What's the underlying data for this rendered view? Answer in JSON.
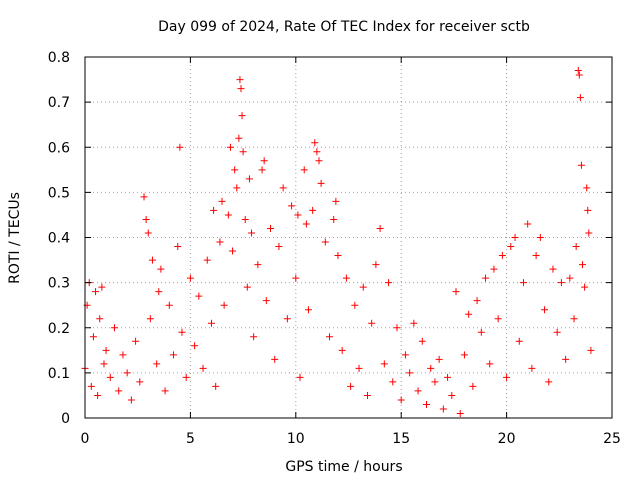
{
  "chart_data": {
    "type": "scatter",
    "title": "Day 099 of 2024, Rate Of TEC Index for receiver sctb",
    "xlabel": "GPS time / hours",
    "ylabel": "ROTI / TECUs",
    "xlim": [
      0,
      25
    ],
    "ylim": [
      0,
      0.8
    ],
    "x_ticks": [
      0,
      5,
      10,
      15,
      20,
      25
    ],
    "x_tick_labels": [
      "0",
      "5",
      "10",
      "15",
      "20",
      "25"
    ],
    "y_ticks": [
      0,
      0.1,
      0.2,
      0.3,
      0.4,
      0.5,
      0.6,
      0.7,
      0.8
    ],
    "y_tick_labels": [
      "0",
      "0.1",
      "0.2",
      "0.3",
      "0.4",
      "0.5",
      "0.6",
      "0.7",
      "0.8"
    ],
    "grid": true,
    "marker": "+",
    "color": "#ff0000",
    "series": [
      {
        "name": "ROTI",
        "points": [
          [
            0.0,
            0.11
          ],
          [
            0.1,
            0.25
          ],
          [
            0.2,
            0.3
          ],
          [
            0.3,
            0.07
          ],
          [
            0.4,
            0.18
          ],
          [
            0.5,
            0.28
          ],
          [
            0.6,
            0.05
          ],
          [
            0.7,
            0.22
          ],
          [
            0.8,
            0.29
          ],
          [
            0.9,
            0.12
          ],
          [
            1.0,
            0.15
          ],
          [
            1.2,
            0.09
          ],
          [
            1.4,
            0.2
          ],
          [
            1.6,
            0.06
          ],
          [
            1.8,
            0.14
          ],
          [
            2.0,
            0.1
          ],
          [
            2.2,
            0.04
          ],
          [
            2.4,
            0.17
          ],
          [
            2.6,
            0.08
          ],
          [
            2.8,
            0.49
          ],
          [
            2.9,
            0.44
          ],
          [
            3.0,
            0.41
          ],
          [
            3.1,
            0.22
          ],
          [
            3.2,
            0.35
          ],
          [
            3.4,
            0.12
          ],
          [
            3.5,
            0.28
          ],
          [
            3.6,
            0.33
          ],
          [
            3.8,
            0.06
          ],
          [
            4.0,
            0.25
          ],
          [
            4.2,
            0.14
          ],
          [
            4.4,
            0.38
          ],
          [
            4.5,
            0.6
          ],
          [
            4.6,
            0.19
          ],
          [
            4.8,
            0.09
          ],
          [
            5.0,
            0.31
          ],
          [
            5.2,
            0.16
          ],
          [
            5.4,
            0.27
          ],
          [
            5.6,
            0.11
          ],
          [
            5.8,
            0.35
          ],
          [
            6.0,
            0.21
          ],
          [
            6.1,
            0.46
          ],
          [
            6.2,
            0.07
          ],
          [
            6.4,
            0.39
          ],
          [
            6.5,
            0.48
          ],
          [
            6.6,
            0.25
          ],
          [
            6.8,
            0.45
          ],
          [
            6.9,
            0.6
          ],
          [
            7.0,
            0.37
          ],
          [
            7.1,
            0.55
          ],
          [
            7.2,
            0.51
          ],
          [
            7.3,
            0.62
          ],
          [
            7.35,
            0.75
          ],
          [
            7.4,
            0.73
          ],
          [
            7.45,
            0.67
          ],
          [
            7.5,
            0.59
          ],
          [
            7.6,
            0.44
          ],
          [
            7.7,
            0.29
          ],
          [
            7.8,
            0.53
          ],
          [
            7.9,
            0.41
          ],
          [
            8.0,
            0.18
          ],
          [
            8.2,
            0.34
          ],
          [
            8.4,
            0.55
          ],
          [
            8.5,
            0.57
          ],
          [
            8.6,
            0.26
          ],
          [
            8.8,
            0.42
          ],
          [
            9.0,
            0.13
          ],
          [
            9.2,
            0.38
          ],
          [
            9.4,
            0.51
          ],
          [
            9.6,
            0.22
          ],
          [
            9.8,
            0.47
          ],
          [
            10.0,
            0.31
          ],
          [
            10.1,
            0.45
          ],
          [
            10.2,
            0.09
          ],
          [
            10.4,
            0.55
          ],
          [
            10.5,
            0.43
          ],
          [
            10.6,
            0.24
          ],
          [
            10.8,
            0.46
          ],
          [
            10.9,
            0.61
          ],
          [
            11.0,
            0.59
          ],
          [
            11.1,
            0.57
          ],
          [
            11.2,
            0.52
          ],
          [
            11.4,
            0.39
          ],
          [
            11.6,
            0.18
          ],
          [
            11.8,
            0.44
          ],
          [
            11.9,
            0.48
          ],
          [
            12.0,
            0.36
          ],
          [
            12.2,
            0.15
          ],
          [
            12.4,
            0.31
          ],
          [
            12.6,
            0.07
          ],
          [
            12.8,
            0.25
          ],
          [
            13.0,
            0.11
          ],
          [
            13.2,
            0.29
          ],
          [
            13.4,
            0.05
          ],
          [
            13.6,
            0.21
          ],
          [
            13.8,
            0.34
          ],
          [
            14.0,
            0.42
          ],
          [
            14.2,
            0.12
          ],
          [
            14.4,
            0.3
          ],
          [
            14.6,
            0.08
          ],
          [
            14.8,
            0.2
          ],
          [
            15.0,
            0.04
          ],
          [
            15.2,
            0.14
          ],
          [
            15.4,
            0.1
          ],
          [
            15.6,
            0.21
          ],
          [
            15.8,
            0.06
          ],
          [
            16.0,
            0.17
          ],
          [
            16.2,
            0.03
          ],
          [
            16.4,
            0.11
          ],
          [
            16.6,
            0.08
          ],
          [
            16.8,
            0.13
          ],
          [
            17.0,
            0.02
          ],
          [
            17.2,
            0.09
          ],
          [
            17.4,
            0.05
          ],
          [
            17.6,
            0.28
          ],
          [
            17.8,
            0.01
          ],
          [
            18.0,
            0.14
          ],
          [
            18.2,
            0.23
          ],
          [
            18.4,
            0.07
          ],
          [
            18.6,
            0.26
          ],
          [
            18.8,
            0.19
          ],
          [
            19.0,
            0.31
          ],
          [
            19.2,
            0.12
          ],
          [
            19.4,
            0.33
          ],
          [
            19.6,
            0.22
          ],
          [
            19.8,
            0.36
          ],
          [
            20.0,
            0.09
          ],
          [
            20.2,
            0.38
          ],
          [
            20.4,
            0.4
          ],
          [
            20.6,
            0.17
          ],
          [
            20.8,
            0.3
          ],
          [
            21.0,
            0.43
          ],
          [
            21.2,
            0.11
          ],
          [
            21.4,
            0.36
          ],
          [
            21.6,
            0.4
          ],
          [
            21.8,
            0.24
          ],
          [
            22.0,
            0.08
          ],
          [
            22.2,
            0.33
          ],
          [
            22.4,
            0.19
          ],
          [
            22.6,
            0.3
          ],
          [
            22.8,
            0.13
          ],
          [
            23.0,
            0.31
          ],
          [
            23.2,
            0.22
          ],
          [
            23.3,
            0.38
          ],
          [
            23.4,
            0.77
          ],
          [
            23.45,
            0.76
          ],
          [
            23.5,
            0.71
          ],
          [
            23.55,
            0.56
          ],
          [
            23.6,
            0.34
          ],
          [
            23.7,
            0.29
          ],
          [
            23.8,
            0.51
          ],
          [
            23.85,
            0.46
          ],
          [
            23.9,
            0.41
          ],
          [
            24.0,
            0.15
          ]
        ]
      }
    ]
  }
}
